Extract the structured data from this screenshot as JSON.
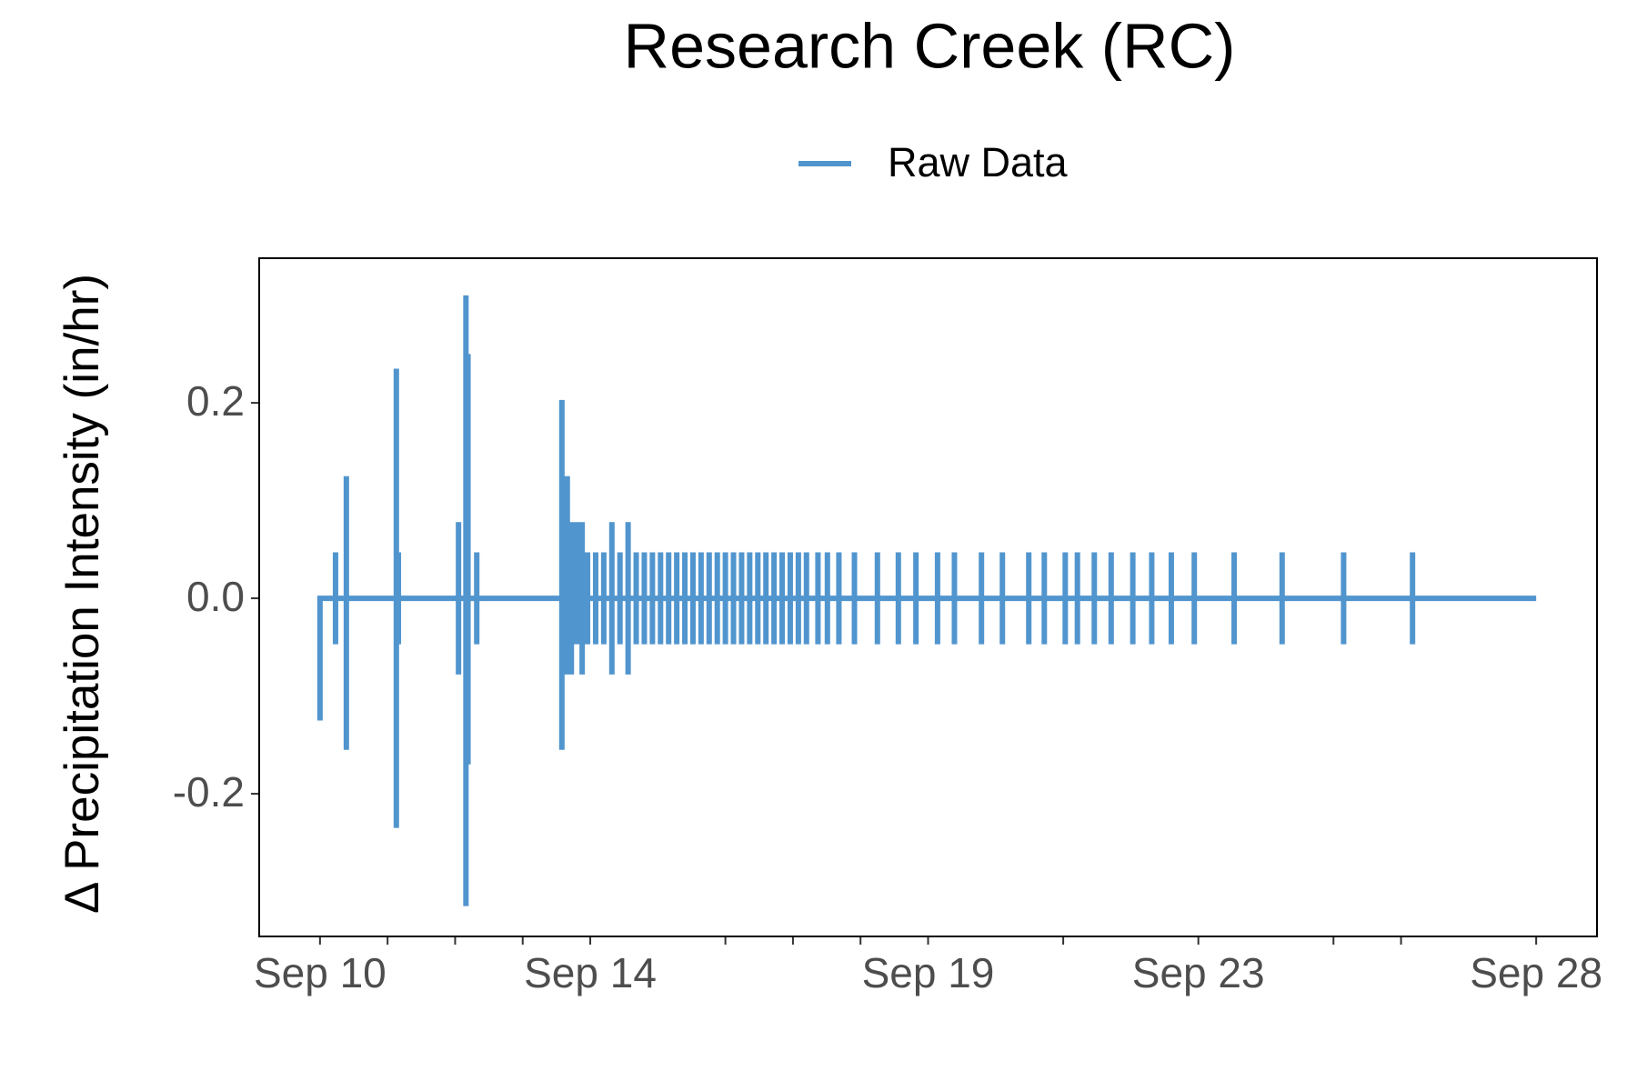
{
  "chart_data": {
    "type": "line",
    "title": "Research Creek (RC)",
    "y_label": "Δ Precipitation Intensity (in/hr)",
    "legend": "top",
    "series": [
      {
        "name": "Raw Data",
        "color": "#5195ce",
        "x": [
          10.0,
          10.0,
          10.23,
          10.23,
          10.23,
          10.23,
          10.39,
          10.39,
          10.39,
          10.39,
          11.13,
          11.13,
          11.13,
          11.13,
          11.16,
          11.16,
          11.16,
          11.16,
          12.05,
          12.05,
          12.05,
          12.05,
          12.16,
          12.16,
          12.16,
          12.16,
          12.19,
          12.19,
          12.19,
          12.19,
          12.32,
          12.32,
          12.32,
          12.32,
          13.58,
          13.58,
          13.58,
          13.58,
          13.66,
          13.66,
          13.66,
          13.66,
          13.72,
          13.72,
          13.72,
          13.72,
          13.8,
          13.8,
          13.8,
          13.8,
          13.88,
          13.88,
          13.88,
          13.88,
          13.96,
          13.96,
          13.96,
          13.96,
          14.08,
          14.08,
          14.08,
          14.08,
          14.2,
          14.2,
          14.2,
          14.2,
          14.32,
          14.32,
          14.32,
          14.32,
          14.44,
          14.44,
          14.44,
          14.44,
          14.56,
          14.56,
          14.56,
          14.56,
          14.68,
          14.68,
          14.68,
          14.68,
          14.8,
          14.8,
          14.8,
          14.8,
          14.92,
          14.92,
          14.92,
          14.92,
          15.04,
          15.04,
          15.04,
          15.04,
          15.16,
          15.16,
          15.16,
          15.16,
          15.28,
          15.28,
          15.28,
          15.28,
          15.4,
          15.4,
          15.4,
          15.4,
          15.52,
          15.52,
          15.52,
          15.52,
          15.64,
          15.64,
          15.64,
          15.64,
          15.76,
          15.76,
          15.76,
          15.76,
          15.88,
          15.88,
          15.88,
          15.88,
          16.0,
          16.0,
          16.0,
          16.0,
          16.12,
          16.12,
          16.12,
          16.12,
          16.24,
          16.24,
          16.24,
          16.24,
          16.36,
          16.36,
          16.36,
          16.36,
          16.48,
          16.48,
          16.48,
          16.48,
          16.6,
          16.6,
          16.6,
          16.6,
          16.72,
          16.72,
          16.72,
          16.72,
          16.84,
          16.84,
          16.84,
          16.84,
          16.96,
          16.96,
          16.96,
          16.96,
          17.08,
          17.08,
          17.08,
          17.08,
          17.2,
          17.2,
          17.2,
          17.2,
          17.37,
          17.37,
          17.37,
          17.37,
          17.51,
          17.51,
          17.51,
          17.51,
          17.68,
          17.68,
          17.68,
          17.68,
          17.91,
          17.91,
          17.91,
          17.91,
          18.25,
          18.25,
          18.25,
          18.25,
          18.56,
          18.56,
          18.56,
          18.56,
          18.82,
          18.82,
          18.82,
          18.82,
          19.14,
          19.14,
          19.14,
          19.14,
          19.39,
          19.39,
          19.39,
          19.39,
          19.79,
          19.79,
          19.79,
          19.79,
          20.1,
          20.1,
          20.1,
          20.1,
          20.49,
          20.49,
          20.49,
          20.49,
          20.72,
          20.72,
          20.72,
          20.72,
          21.03,
          21.03,
          21.03,
          21.03,
          21.21,
          21.21,
          21.21,
          21.21,
          21.46,
          21.46,
          21.46,
          21.46,
          21.71,
          21.71,
          21.71,
          21.71,
          22.03,
          22.03,
          22.03,
          22.03,
          22.31,
          22.31,
          22.31,
          22.31,
          22.6,
          22.6,
          22.6,
          22.6,
          22.94,
          22.94,
          22.94,
          22.94,
          23.53,
          23.53,
          23.53,
          23.53,
          24.24,
          24.24,
          24.24,
          24.24,
          25.15,
          25.15,
          25.15,
          25.15,
          26.17,
          26.17,
          26.17,
          26.17,
          28.0
        ],
        "values": [
          -0.125,
          0,
          0,
          0.047,
          -0.047,
          0,
          0,
          0.125,
          -0.155,
          0,
          0,
          0.235,
          -0.235,
          0,
          0,
          0.047,
          -0.047,
          0,
          0,
          0.078,
          -0.078,
          0,
          0,
          0.31,
          -0.315,
          0,
          0,
          0.25,
          -0.17,
          0,
          0,
          0.047,
          -0.047,
          0,
          0,
          0.203,
          -0.155,
          0,
          0,
          0.125,
          -0.078,
          0,
          0,
          0.078,
          -0.078,
          0,
          0,
          0.078,
          -0.047,
          0,
          0,
          0.078,
          -0.078,
          0,
          0,
          0.047,
          -0.047,
          0,
          0,
          0.047,
          -0.047,
          0,
          0,
          0.047,
          -0.047,
          0,
          0,
          0.078,
          -0.078,
          0,
          0,
          0.047,
          -0.047,
          0,
          0,
          0.078,
          -0.078,
          0,
          0,
          0.047,
          -0.047,
          0,
          0,
          0.047,
          -0.047,
          0,
          0,
          0.047,
          -0.047,
          0,
          0,
          0.047,
          -0.047,
          0,
          0,
          0.047,
          -0.047,
          0,
          0,
          0.047,
          -0.047,
          0,
          0,
          0.047,
          -0.047,
          0,
          0,
          0.047,
          -0.047,
          0,
          0,
          0.047,
          -0.047,
          0,
          0,
          0.047,
          -0.047,
          0,
          0,
          0.047,
          -0.047,
          0,
          0,
          0.047,
          -0.047,
          0,
          0,
          0.047,
          -0.047,
          0,
          0,
          0.047,
          -0.047,
          0,
          0,
          0.047,
          -0.047,
          0,
          0,
          0.047,
          -0.047,
          0,
          0,
          0.047,
          -0.047,
          0,
          0,
          0.047,
          -0.047,
          0,
          0,
          0.047,
          -0.047,
          0,
          0,
          0.047,
          -0.047,
          0,
          0,
          0.047,
          -0.047,
          0,
          0,
          0.047,
          -0.047,
          0,
          0,
          0.047,
          -0.047,
          0,
          0,
          0.047,
          -0.047,
          0,
          0,
          0.047,
          -0.047,
          0,
          0,
          0.047,
          -0.047,
          0,
          0,
          0.047,
          -0.047,
          0,
          0,
          0.047,
          -0.047,
          0,
          0,
          0.047,
          -0.047,
          0,
          0,
          0.047,
          -0.047,
          0,
          0,
          0.047,
          -0.047,
          0,
          0,
          0.047,
          -0.047,
          0,
          0,
          0.047,
          -0.047,
          0,
          0,
          0.047,
          -0.047,
          0,
          0,
          0.047,
          -0.047,
          0,
          0,
          0.047,
          -0.047,
          0,
          0,
          0.047,
          -0.047,
          0,
          0,
          0.047,
          -0.047,
          0,
          0,
          0.047,
          -0.047,
          0,
          0,
          0.047,
          -0.047,
          0,
          0,
          0.047,
          -0.047,
          0,
          0,
          0.047,
          -0.047,
          0,
          0,
          0.047,
          -0.047,
          0,
          0,
          0.047,
          -0.047,
          0,
          0,
          0.047,
          -0.047,
          0,
          0,
          0.047,
          -0.047,
          0,
          0,
          0.047,
          -0.047,
          0,
          0
        ]
      }
    ],
    "xlim": [
      9.1,
      28.9
    ],
    "xticks": [
      {
        "value": 10,
        "label": "Sep 10"
      },
      {
        "value": 14,
        "label": "Sep 14"
      },
      {
        "value": 19,
        "label": "Sep 19"
      },
      {
        "value": 23,
        "label": "Sep 23"
      },
      {
        "value": 28,
        "label": "Sep 28"
      }
    ],
    "xminorticks": [
      11,
      12,
      13,
      16,
      17,
      18,
      21,
      25,
      26
    ],
    "ylim": [
      -0.346,
      0.348
    ],
    "yticks": [
      -0.2,
      {
        "value": 0,
        "label": "0.0"
      },
      0.2
    ]
  }
}
